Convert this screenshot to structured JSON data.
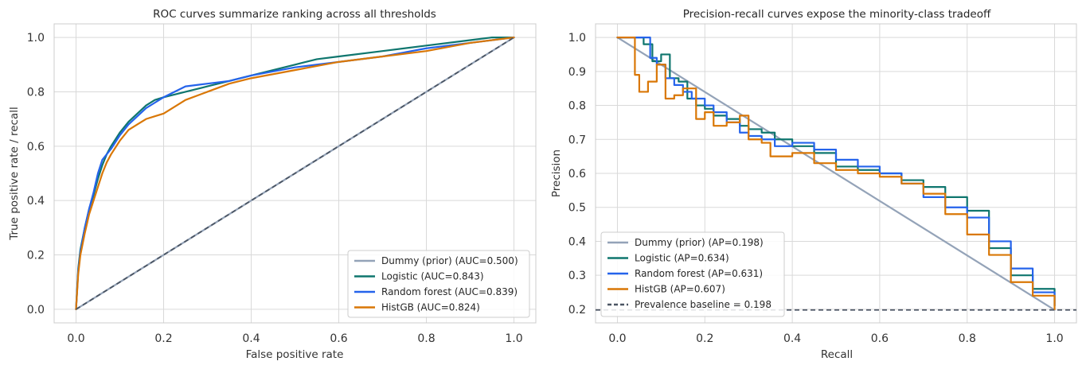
{
  "colors": {
    "dummy": "#94a3b8",
    "logistic": "#0f766e",
    "random_forest": "#2563eb",
    "histgb": "#d97706",
    "reference": "#4b5563"
  },
  "chart_data": [
    {
      "type": "line",
      "title": "ROC curves summarize ranking across all thresholds",
      "xlabel": "False positive rate",
      "ylabel": "True positive rate / recall",
      "xlim": [
        -0.05,
        1.05
      ],
      "ylim": [
        -0.05,
        1.05
      ],
      "xticks": [
        0.0,
        0.2,
        0.4,
        0.6,
        0.8,
        1.0
      ],
      "yticks": [
        0.0,
        0.2,
        0.4,
        0.6,
        0.8,
        1.0
      ],
      "xtick_labels": [
        "0.0",
        "0.2",
        "0.4",
        "0.6",
        "0.8",
        "1.0"
      ],
      "ytick_labels": [
        "0.0",
        "0.2",
        "0.4",
        "0.6",
        "0.8",
        "1.0"
      ],
      "grid": true,
      "legend_position": "lower-right",
      "reference_line": {
        "style": "dashed",
        "x": [
          0,
          1
        ],
        "y": [
          0,
          1
        ],
        "color_key": "reference"
      },
      "series": [
        {
          "name": "Dummy (prior) (AUC=0.500)",
          "color_key": "dummy",
          "step": false,
          "x": [
            0,
            1
          ],
          "y": [
            0,
            1
          ]
        },
        {
          "name": "Logistic (AUC=0.843)",
          "color_key": "logistic",
          "step": false,
          "x": [
            0,
            0.005,
            0.01,
            0.02,
            0.03,
            0.04,
            0.05,
            0.06,
            0.07,
            0.08,
            0.1,
            0.12,
            0.14,
            0.16,
            0.18,
            0.2,
            0.25,
            0.3,
            0.35,
            0.4,
            0.5,
            0.55,
            0.6,
            0.7,
            0.8,
            0.9,
            0.95,
            1.0
          ],
          "y": [
            0,
            0.15,
            0.22,
            0.3,
            0.37,
            0.42,
            0.48,
            0.53,
            0.57,
            0.6,
            0.65,
            0.69,
            0.72,
            0.75,
            0.77,
            0.78,
            0.8,
            0.82,
            0.84,
            0.86,
            0.9,
            0.92,
            0.93,
            0.95,
            0.97,
            0.99,
            1.0,
            1.0
          ]
        },
        {
          "name": "Random forest (AUC=0.839)",
          "color_key": "random_forest",
          "step": false,
          "x": [
            0,
            0.005,
            0.01,
            0.02,
            0.03,
            0.04,
            0.05,
            0.06,
            0.07,
            0.08,
            0.1,
            0.12,
            0.14,
            0.16,
            0.18,
            0.2,
            0.25,
            0.3,
            0.35,
            0.4,
            0.5,
            0.6,
            0.7,
            0.8,
            0.9,
            1.0
          ],
          "y": [
            0,
            0.14,
            0.21,
            0.3,
            0.37,
            0.43,
            0.5,
            0.55,
            0.57,
            0.59,
            0.64,
            0.68,
            0.71,
            0.74,
            0.76,
            0.78,
            0.82,
            0.83,
            0.84,
            0.86,
            0.89,
            0.91,
            0.93,
            0.96,
            0.98,
            1.0
          ]
        },
        {
          "name": "HistGB (AUC=0.824)",
          "color_key": "histgb",
          "step": false,
          "x": [
            0,
            0.005,
            0.01,
            0.02,
            0.03,
            0.04,
            0.05,
            0.06,
            0.07,
            0.08,
            0.1,
            0.12,
            0.14,
            0.16,
            0.18,
            0.2,
            0.25,
            0.3,
            0.35,
            0.4,
            0.5,
            0.6,
            0.7,
            0.8,
            0.9,
            1.0
          ],
          "y": [
            0,
            0.13,
            0.2,
            0.28,
            0.35,
            0.4,
            0.45,
            0.5,
            0.54,
            0.57,
            0.62,
            0.66,
            0.68,
            0.7,
            0.71,
            0.72,
            0.77,
            0.8,
            0.83,
            0.85,
            0.88,
            0.91,
            0.93,
            0.95,
            0.98,
            1.0
          ]
        }
      ]
    },
    {
      "type": "line",
      "title": "Precision-recall curves expose the minority-class tradeoff",
      "xlabel": "Recall",
      "ylabel": "Precision",
      "xlim": [
        -0.05,
        1.05
      ],
      "ylim": [
        0.16,
        1.04
      ],
      "xticks": [
        0.0,
        0.2,
        0.4,
        0.6,
        0.8,
        1.0
      ],
      "yticks": [
        0.2,
        0.3,
        0.4,
        0.5,
        0.6,
        0.7,
        0.8,
        0.9,
        1.0
      ],
      "xtick_labels": [
        "0.0",
        "0.2",
        "0.4",
        "0.6",
        "0.8",
        "1.0"
      ],
      "ytick_labels": [
        "0.2",
        "0.3",
        "0.4",
        "0.5",
        "0.6",
        "0.7",
        "0.8",
        "0.9",
        "1.0"
      ],
      "grid": true,
      "legend_position": "lower-left",
      "reference_line": {
        "style": "dashed",
        "x": [
          -0.05,
          1.05
        ],
        "y": [
          0.198,
          0.198
        ],
        "color_key": "reference",
        "name": "Prevalence baseline = 0.198"
      },
      "series": [
        {
          "name": "Dummy (prior) (AP=0.198)",
          "color_key": "dummy",
          "step": false,
          "x": [
            0,
            1
          ],
          "y": [
            1.0,
            0.198
          ]
        },
        {
          "name": "Logistic (AP=0.634)",
          "color_key": "logistic",
          "step": true,
          "x": [
            0,
            0.03,
            0.06,
            0.08,
            0.1,
            0.12,
            0.14,
            0.16,
            0.18,
            0.2,
            0.22,
            0.25,
            0.28,
            0.3,
            0.33,
            0.36,
            0.4,
            0.45,
            0.5,
            0.55,
            0.6,
            0.65,
            0.7,
            0.75,
            0.8,
            0.85,
            0.9,
            0.95,
            1.0
          ],
          "y": [
            1.0,
            1.0,
            0.98,
            0.93,
            0.95,
            0.88,
            0.87,
            0.82,
            0.8,
            0.79,
            0.77,
            0.76,
            0.74,
            0.73,
            0.72,
            0.7,
            0.68,
            0.66,
            0.62,
            0.61,
            0.6,
            0.58,
            0.56,
            0.53,
            0.49,
            0.38,
            0.3,
            0.26,
            0.21
          ]
        },
        {
          "name": "Random forest (AP=0.631)",
          "color_key": "random_forest",
          "step": true,
          "x": [
            0,
            0.03,
            0.05,
            0.075,
            0.09,
            0.11,
            0.13,
            0.15,
            0.17,
            0.2,
            0.22,
            0.25,
            0.28,
            0.3,
            0.33,
            0.36,
            0.4,
            0.45,
            0.5,
            0.55,
            0.6,
            0.65,
            0.7,
            0.75,
            0.8,
            0.85,
            0.9,
            0.95,
            1.0
          ],
          "y": [
            1.0,
            1.0,
            1.0,
            0.94,
            0.92,
            0.88,
            0.86,
            0.84,
            0.82,
            0.8,
            0.78,
            0.75,
            0.72,
            0.71,
            0.7,
            0.68,
            0.69,
            0.67,
            0.64,
            0.62,
            0.6,
            0.57,
            0.53,
            0.5,
            0.47,
            0.4,
            0.32,
            0.25,
            0.21
          ]
        },
        {
          "name": "HistGB (AP=0.607)",
          "color_key": "histgb",
          "step": true,
          "x": [
            0,
            0.03,
            0.04,
            0.05,
            0.07,
            0.09,
            0.11,
            0.13,
            0.15,
            0.18,
            0.2,
            0.22,
            0.25,
            0.28,
            0.3,
            0.33,
            0.35,
            0.4,
            0.45,
            0.5,
            0.55,
            0.6,
            0.65,
            0.7,
            0.75,
            0.8,
            0.85,
            0.9,
            0.95,
            1.0
          ],
          "y": [
            1.0,
            1.0,
            0.89,
            0.84,
            0.87,
            0.92,
            0.82,
            0.83,
            0.85,
            0.76,
            0.78,
            0.74,
            0.75,
            0.77,
            0.7,
            0.69,
            0.65,
            0.66,
            0.63,
            0.61,
            0.6,
            0.59,
            0.57,
            0.54,
            0.48,
            0.42,
            0.36,
            0.28,
            0.24,
            0.2
          ]
        }
      ],
      "legend_extra": "Prevalence baseline = 0.198"
    }
  ]
}
